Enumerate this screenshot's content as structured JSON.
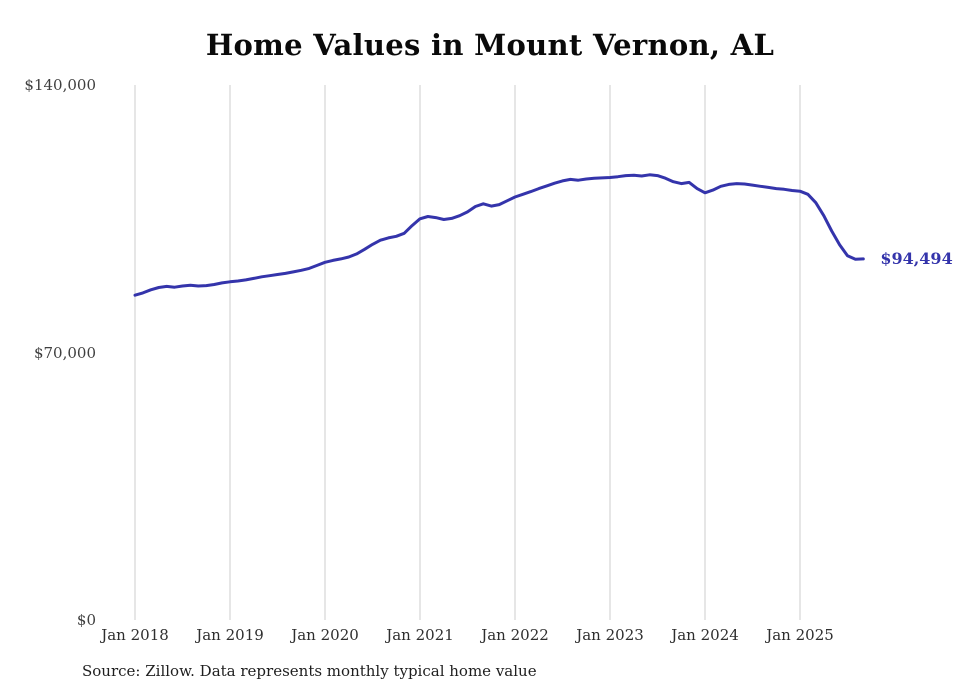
{
  "page": {
    "source_note": "Source: Zillow. Data represents monthly typical home value"
  },
  "chart_data": {
    "type": "line",
    "title": "Home Values in Mount Vernon, AL",
    "xlabel": "",
    "ylabel": "",
    "ylim": [
      0,
      140000
    ],
    "y_ticks": [
      0,
      70000,
      140000
    ],
    "y_tick_labels": [
      "$0",
      "$70,000",
      "$140,000"
    ],
    "x_tick_labels": [
      "Jan 2018",
      "Jan 2019",
      "Jan 2020",
      "Jan 2021",
      "Jan 2022",
      "Jan 2023",
      "Jan 2024",
      "Jan 2025"
    ],
    "months_per_tick": 12,
    "grid": "vertical-only",
    "legend": "none",
    "line_color": "#3434ab",
    "end_label": "$94,494",
    "end_value": 94494,
    "x": [
      "2018-01",
      "2018-02",
      "2018-03",
      "2018-04",
      "2018-05",
      "2018-06",
      "2018-07",
      "2018-08",
      "2018-09",
      "2018-10",
      "2018-11",
      "2018-12",
      "2019-01",
      "2019-02",
      "2019-03",
      "2019-04",
      "2019-05",
      "2019-06",
      "2019-07",
      "2019-08",
      "2019-09",
      "2019-10",
      "2019-11",
      "2019-12",
      "2020-01",
      "2020-02",
      "2020-03",
      "2020-04",
      "2020-05",
      "2020-06",
      "2020-07",
      "2020-08",
      "2020-09",
      "2020-10",
      "2020-11",
      "2020-12",
      "2021-01",
      "2021-02",
      "2021-03",
      "2021-04",
      "2021-05",
      "2021-06",
      "2021-07",
      "2021-08",
      "2021-09",
      "2021-10",
      "2021-11",
      "2021-12",
      "2022-01",
      "2022-02",
      "2022-03",
      "2022-04",
      "2022-05",
      "2022-06",
      "2022-07",
      "2022-08",
      "2022-09",
      "2022-10",
      "2022-11",
      "2022-12",
      "2023-01",
      "2023-02",
      "2023-03",
      "2023-04",
      "2023-05",
      "2023-06",
      "2023-07",
      "2023-08",
      "2023-09",
      "2023-10",
      "2023-11",
      "2023-12",
      "2024-01",
      "2024-02",
      "2024-03",
      "2024-04",
      "2024-05",
      "2024-06",
      "2024-07",
      "2024-08",
      "2024-09",
      "2024-10",
      "2024-11",
      "2024-12",
      "2025-01",
      "2025-02",
      "2025-03",
      "2025-04",
      "2025-05",
      "2025-06",
      "2025-07",
      "2025-08",
      "2025-09"
    ],
    "series": [
      {
        "name": "Monthly typical home value",
        "color": "#3434ab",
        "values": [
          85000,
          85600,
          86400,
          87000,
          87300,
          87100,
          87400,
          87600,
          87400,
          87500,
          87800,
          88200,
          88500,
          88700,
          89000,
          89400,
          89800,
          90100,
          90400,
          90700,
          91100,
          91500,
          92000,
          92800,
          93600,
          94100,
          94500,
          95000,
          95800,
          97000,
          98300,
          99400,
          100000,
          100400,
          101200,
          103200,
          105000,
          105600,
          105300,
          104800,
          105100,
          105800,
          106800,
          108200,
          108900,
          108300,
          108700,
          109700,
          110700,
          111400,
          112100,
          112900,
          113600,
          114300,
          114900,
          115300,
          115100,
          115400,
          115600,
          115700,
          115800,
          116000,
          116300,
          116400,
          116200,
          116500,
          116300,
          115600,
          114700,
          114200,
          114500,
          112900,
          111800,
          112500,
          113500,
          114000,
          114200,
          114100,
          113800,
          113500,
          113200,
          112900,
          112700,
          112400,
          112200,
          111400,
          109200,
          105800,
          101800,
          98200,
          95300,
          94400,
          94494
        ]
      }
    ]
  }
}
